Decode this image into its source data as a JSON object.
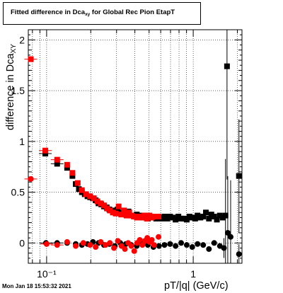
{
  "title": {
    "main": "Fitted difference in Dca",
    "sub": "xy",
    "rest": " for Global Rec Pion EtapT"
  },
  "axes": {
    "ylabel_main": "difference in Dca",
    "ylabel_sub": "XY",
    "xlabel": "pT/|q| (GeV/c)",
    "y_ticks": [
      "0",
      "0.5",
      "1",
      "1.5",
      "2"
    ],
    "x_ticks": [
      "10⁻¹",
      "1"
    ]
  },
  "timestamp": "Mon Jan 18 15:53:32 2021",
  "colors": {
    "red": "#ff0000",
    "black": "#000000",
    "grid": "#000000"
  },
  "chart_data": {
    "type": "scatter",
    "title": "Fitted difference in Dca_xy for Global Rec Pion EtapT",
    "xlabel": "pT/|q| (GeV/c)",
    "ylabel": "difference in Dca_XY",
    "x_scale": "log",
    "xlim": [
      0.075,
      2.15
    ],
    "ylim": [
      -0.2,
      2.1
    ],
    "grid": true,
    "series": [
      {
        "color": "#000000",
        "marker": "square",
        "points": [
          [
            0.098,
            0.88
          ],
          [
            0.118,
            0.78
          ],
          [
            0.138,
            0.74
          ],
          [
            0.15,
            0.66
          ],
          [
            0.158,
            0.58
          ],
          [
            0.166,
            0.53
          ],
          [
            0.174,
            0.5
          ],
          [
            0.182,
            0.48
          ],
          [
            0.19,
            0.46
          ],
          [
            0.198,
            0.45
          ],
          [
            0.207,
            0.44
          ],
          [
            0.216,
            0.42
          ],
          [
            0.226,
            0.39
          ],
          [
            0.236,
            0.38
          ],
          [
            0.246,
            0.36
          ],
          [
            0.257,
            0.35
          ],
          [
            0.268,
            0.33
          ],
          [
            0.28,
            0.32
          ],
          [
            0.292,
            0.31
          ],
          [
            0.305,
            0.33
          ],
          [
            0.318,
            0.3
          ],
          [
            0.332,
            0.29
          ],
          [
            0.347,
            0.28
          ],
          [
            0.362,
            0.31
          ],
          [
            0.378,
            0.27
          ],
          [
            0.395,
            0.26
          ],
          [
            0.412,
            0.28
          ],
          [
            0.43,
            0.27
          ],
          [
            0.449,
            0.25
          ],
          [
            0.469,
            0.27
          ],
          [
            0.49,
            0.24
          ],
          [
            0.512,
            0.26
          ],
          [
            0.535,
            0.25
          ],
          [
            0.559,
            0.24
          ],
          [
            0.584,
            0.25
          ],
          [
            0.61,
            0.24
          ],
          [
            0.637,
            0.26
          ],
          [
            0.665,
            0.24
          ],
          [
            0.695,
            0.26
          ],
          [
            0.726,
            0.25
          ],
          [
            0.758,
            0.23
          ],
          [
            0.792,
            0.26
          ],
          [
            0.827,
            0.24
          ],
          [
            0.864,
            0.24
          ],
          [
            0.903,
            0.23
          ],
          [
            0.943,
            0.26
          ],
          [
            0.985,
            0.25
          ],
          [
            1.03,
            0.24
          ],
          [
            1.07,
            0.27
          ],
          [
            1.12,
            0.25
          ],
          [
            1.17,
            0.26
          ],
          [
            1.22,
            0.3
          ],
          [
            1.28,
            0.24
          ],
          [
            1.33,
            0.28
          ],
          [
            1.39,
            0.26
          ],
          [
            1.45,
            0.23
          ],
          [
            1.52,
            0.27
          ],
          [
            1.59,
            0.25
          ],
          [
            1.66,
            0.27
          ],
          [
            1.7,
            1.74
          ],
          [
            2.05,
            0.66
          ]
        ]
      },
      {
        "color": "#000000",
        "marker": "circle",
        "points": [
          [
            0.099,
            0.0
          ],
          [
            0.118,
            0.0
          ],
          [
            0.138,
            0.0
          ],
          [
            0.158,
            -0.01
          ],
          [
            0.174,
            -0.02
          ],
          [
            0.19,
            -0.01
          ],
          [
            0.207,
            0.01
          ],
          [
            0.226,
            0.0
          ],
          [
            0.246,
            -0.02
          ],
          [
            0.268,
            -0.01
          ],
          [
            0.292,
            -0.03
          ],
          [
            0.318,
            0.0
          ],
          [
            0.347,
            -0.01
          ],
          [
            0.378,
            -0.02
          ],
          [
            0.412,
            -0.03
          ],
          [
            0.449,
            -0.01
          ],
          [
            0.49,
            -0.02
          ],
          [
            0.535,
            -0.04
          ],
          [
            0.584,
            -0.03
          ],
          [
            0.637,
            -0.02
          ],
          [
            0.695,
            -0.01
          ],
          [
            0.758,
            -0.03
          ],
          [
            0.827,
            0.0
          ],
          [
            0.903,
            -0.02
          ],
          [
            0.985,
            -0.04
          ],
          [
            1.07,
            -0.01
          ],
          [
            1.17,
            -0.02
          ],
          [
            1.28,
            -0.06
          ],
          [
            1.39,
            0.0
          ],
          [
            1.52,
            -0.03
          ],
          [
            1.62,
            -0.05
          ],
          [
            1.72,
            0.1
          ],
          [
            1.8,
            0.06
          ],
          [
            2.05,
            -0.11
          ]
        ]
      },
      {
        "color": "#ff0000",
        "marker": "square",
        "points": [
          [
            0.078,
            1.81
          ],
          [
            0.098,
            0.91
          ],
          [
            0.118,
            0.82
          ],
          [
            0.138,
            0.77
          ],
          [
            0.15,
            0.69
          ],
          [
            0.163,
            0.59
          ],
          [
            0.174,
            0.52
          ],
          [
            0.186,
            0.48
          ],
          [
            0.198,
            0.46
          ],
          [
            0.21,
            0.44
          ],
          [
            0.222,
            0.41
          ],
          [
            0.234,
            0.39
          ],
          [
            0.246,
            0.37
          ],
          [
            0.258,
            0.34
          ],
          [
            0.27,
            0.32
          ],
          [
            0.283,
            0.3
          ],
          [
            0.296,
            0.29
          ],
          [
            0.31,
            0.36
          ],
          [
            0.323,
            0.28
          ],
          [
            0.337,
            0.32
          ],
          [
            0.351,
            0.27
          ],
          [
            0.366,
            0.3
          ],
          [
            0.381,
            0.27
          ],
          [
            0.397,
            0.26
          ],
          [
            0.413,
            0.25
          ],
          [
            0.43,
            0.26
          ],
          [
            0.447,
            0.25
          ],
          [
            0.465,
            0.27
          ],
          [
            0.483,
            0.24
          ],
          [
            0.502,
            0.27
          ],
          [
            0.521,
            0.25
          ],
          [
            0.541,
            0.26
          ],
          [
            0.58,
            0.26
          ]
        ]
      },
      {
        "color": "#ff0000",
        "marker": "circle",
        "points": [
          [
            0.078,
            0.63
          ],
          [
            0.1,
            -0.01
          ],
          [
            0.118,
            -0.02
          ],
          [
            0.138,
            0.01
          ],
          [
            0.158,
            -0.03
          ],
          [
            0.178,
            0.0
          ],
          [
            0.198,
            -0.02
          ],
          [
            0.216,
            -0.04
          ],
          [
            0.234,
            0.01
          ],
          [
            0.252,
            -0.02
          ],
          [
            0.27,
            0.0
          ],
          [
            0.288,
            -0.05
          ],
          [
            0.306,
            0.02
          ],
          [
            0.324,
            -0.03
          ],
          [
            0.342,
            -0.06
          ],
          [
            0.36,
            0.0
          ],
          [
            0.378,
            -0.03
          ],
          [
            0.396,
            -0.08
          ],
          [
            0.414,
            0.0
          ],
          [
            0.432,
            0.03
          ],
          [
            0.45,
            -0.02
          ],
          [
            0.468,
            0.02
          ],
          [
            0.486,
            0.05
          ],
          [
            0.504,
            0.01
          ],
          [
            0.522,
            0.03
          ],
          [
            0.54,
            -0.02
          ],
          [
            0.58,
            0.06
          ]
        ]
      }
    ]
  }
}
